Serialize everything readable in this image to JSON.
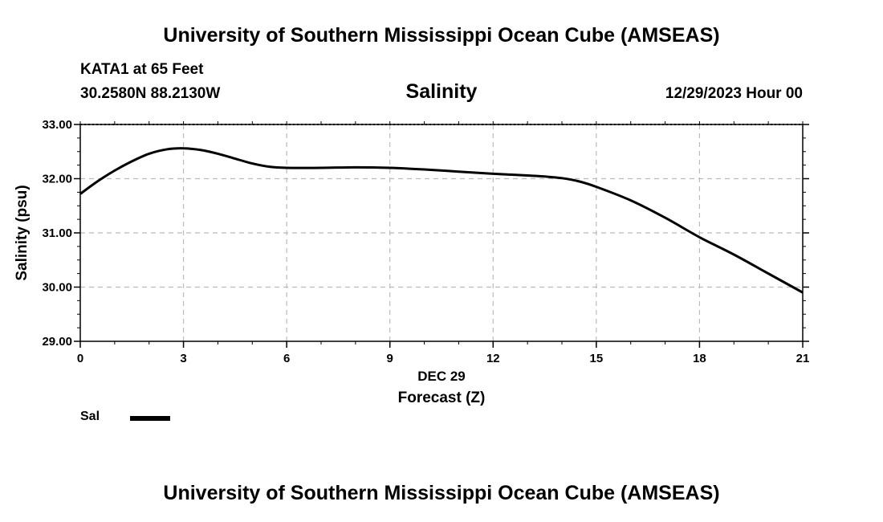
{
  "header": {
    "title": "University of Southern Mississippi Ocean Cube (AMSEAS)",
    "station": "KATA1 at 65 Feet",
    "coords": "30.2580N  88.2130W",
    "subtitle": "Salinity",
    "datetime": "12/29/2023 Hour 00"
  },
  "footer": {
    "title": "University of Southern Mississippi Ocean Cube (AMSEAS)"
  },
  "legend": {
    "label": "Sal"
  },
  "colors": {
    "line": "#000000",
    "grid": "#bbbbbb",
    "axis": "#000000"
  },
  "chart_data": {
    "type": "line",
    "title": "Salinity",
    "xlabel": "Forecast (Z)",
    "xdate_label": "DEC 29",
    "ylabel": "Salinity (psu)",
    "xlim": [
      0,
      21
    ],
    "ylim": [
      29,
      33
    ],
    "xticks": [
      0,
      3,
      6,
      9,
      12,
      15,
      18,
      21
    ],
    "xtick_labels": [
      "0",
      "3",
      "6",
      "9",
      "12",
      "15",
      "18",
      "21"
    ],
    "yticks": [
      29,
      30,
      31,
      32,
      33
    ],
    "ytick_labels": [
      "29.00",
      "30.00",
      "31.00",
      "32.00",
      "33.00"
    ],
    "grid": true,
    "series": [
      {
        "name": "Sal",
        "x": [
          0,
          0.5,
          1,
          1.5,
          2,
          2.5,
          3,
          3.5,
          4,
          4.5,
          5,
          5.5,
          6,
          7,
          8,
          9,
          10,
          11,
          12,
          13,
          13.5,
          14,
          14.5,
          15,
          16,
          17,
          18,
          19,
          20,
          21
        ],
        "values": [
          31.72,
          31.95,
          32.15,
          32.32,
          32.46,
          32.54,
          32.56,
          32.53,
          32.46,
          32.37,
          32.28,
          32.22,
          32.2,
          32.2,
          32.21,
          32.2,
          32.17,
          32.13,
          32.09,
          32.06,
          32.04,
          32.01,
          31.95,
          31.85,
          31.6,
          31.28,
          30.92,
          30.6,
          30.25,
          29.9
        ]
      }
    ]
  }
}
